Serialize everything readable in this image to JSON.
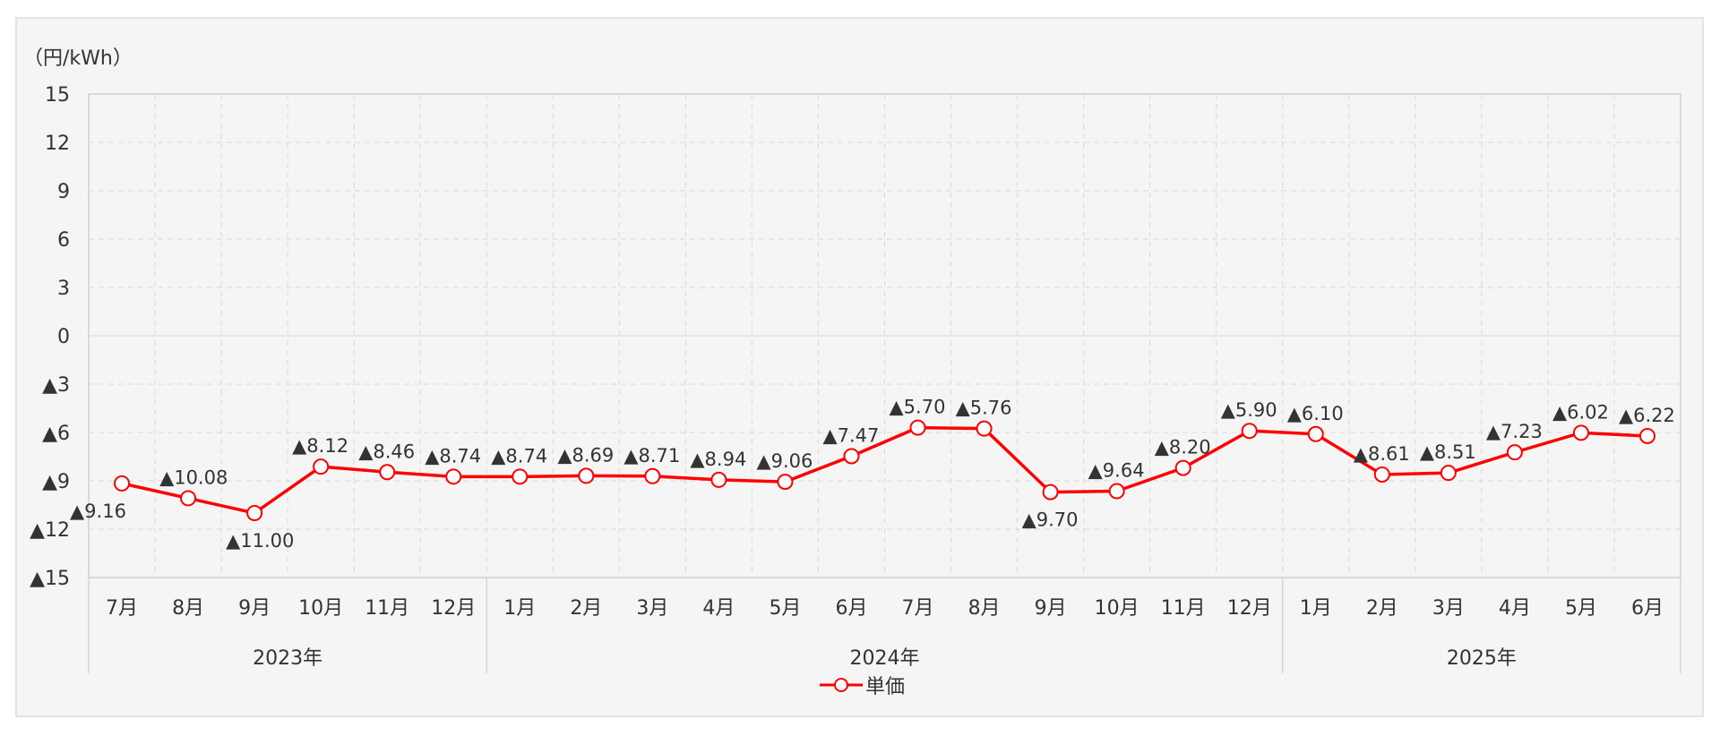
{
  "colors": {
    "series": "#ff0000",
    "grid": "#d9d9d9",
    "axis": "#bfbfbf",
    "panel": "#f5f5f5",
    "frame": "#e3e3e3",
    "text": "#333333"
  },
  "chart_data": {
    "type": "line",
    "unit_label": "（円/kWh）",
    "ylim": [
      -15,
      15
    ],
    "y_ticks": [
      15,
      12,
      9,
      6,
      3,
      0,
      -3,
      -6,
      -9,
      -12,
      -15
    ],
    "y_tick_labels": [
      "15",
      "12",
      "9",
      "6",
      "3",
      "0",
      "▲3",
      "▲6",
      "▲9",
      "▲12",
      "▲15"
    ],
    "grid": true,
    "legend": "bottom-center",
    "categories": [
      "7月",
      "8月",
      "9月",
      "10月",
      "11月",
      "12月",
      "1月",
      "2月",
      "3月",
      "4月",
      "5月",
      "6月",
      "7月",
      "8月",
      "9月",
      "10月",
      "11月",
      "12月",
      "1月",
      "2月",
      "3月",
      "4月",
      "5月",
      "6月"
    ],
    "years": [
      {
        "label": "2023年",
        "start": 0,
        "count": 6
      },
      {
        "label": "2024年",
        "start": 6,
        "count": 12
      },
      {
        "label": "2025年",
        "start": 18,
        "count": 6
      }
    ],
    "series": [
      {
        "name": "単価",
        "values": [
          -9.16,
          -10.08,
          -11.0,
          -8.12,
          -8.46,
          -8.74,
          -8.74,
          -8.69,
          -8.71,
          -8.94,
          -9.06,
          -7.47,
          -5.7,
          -5.76,
          -9.7,
          -9.64,
          -8.2,
          -5.9,
          -6.1,
          -8.61,
          -8.51,
          -7.23,
          -6.02,
          -6.22
        ],
        "labels": [
          "▲9.16",
          "▲10.08",
          "▲11.00",
          "▲8.12",
          "▲8.46",
          "▲8.74",
          "▲8.74",
          "▲8.69",
          "▲8.71",
          "▲8.94",
          "▲9.06",
          "▲7.47",
          "▲5.70",
          "▲5.76",
          "▲9.70",
          "▲9.64",
          "▲8.20",
          "▲5.90",
          "▲6.10",
          "▲8.61",
          "▲8.51",
          "▲7.23",
          "▲6.02",
          "▲6.22"
        ]
      }
    ]
  }
}
